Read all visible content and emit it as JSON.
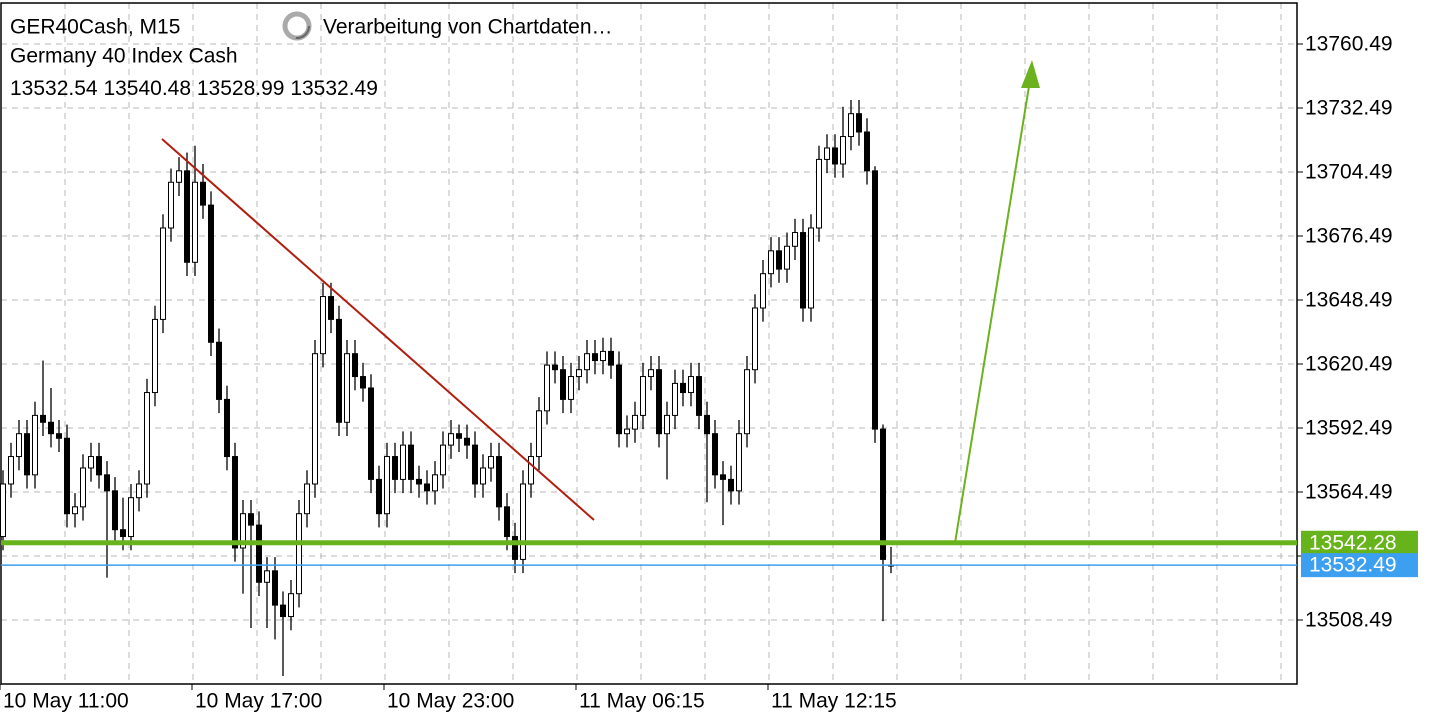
{
  "chart_data": {
    "type": "candlestick",
    "title": "GER40Cash, M15",
    "subtitle": "Germany 40 Index Cash",
    "status": "Verarbeitung von Chartdaten…",
    "categories": [
      "10 May 11:00",
      null,
      null,
      null,
      null,
      null,
      null,
      null,
      null,
      null,
      null,
      null,
      null,
      null,
      null,
      null,
      null,
      null,
      null,
      null,
      null,
      null,
      null,
      null,
      "10 May 17:00",
      null,
      null,
      null,
      null,
      null,
      null,
      null,
      null,
      null,
      null,
      null,
      null,
      null,
      null,
      null,
      null,
      null,
      null,
      null,
      null,
      null,
      null,
      null,
      "10 May 23:00",
      null,
      null,
      null,
      null,
      null,
      null,
      null,
      null,
      null,
      null,
      null,
      null,
      null,
      null,
      null,
      null,
      null,
      null,
      null,
      null,
      null,
      null,
      null,
      "11 May 06:15",
      null,
      null,
      null,
      null,
      null,
      null,
      null,
      null,
      null,
      null,
      null,
      null,
      null,
      null,
      null,
      null,
      null,
      null,
      null,
      null,
      null,
      null,
      null,
      "11 May 12:15",
      null,
      null,
      null,
      null,
      null,
      null,
      null,
      null,
      null,
      null,
      null,
      null,
      null,
      null,
      null
    ],
    "open": [
      13545,
      13568,
      13580,
      13590,
      13572,
      13598,
      13595,
      13590,
      13588,
      13555,
      13558,
      13575,
      13580,
      13572,
      13565,
      13548,
      13545,
      13562,
      13568,
      13608,
      13640,
      13680,
      13700,
      13705,
      13665,
      13700,
      13690,
      13630,
      13605,
      13580,
      13540,
      13555,
      13550,
      13525,
      13530,
      13515,
      13510,
      13520,
      13555,
      13568,
      13625,
      13650,
      13640,
      13595,
      13625,
      13615,
      13610,
      13570,
      13555,
      13580,
      13570,
      13585,
      13570,
      13568,
      13565,
      13572,
      13585,
      13590,
      13588,
      13585,
      13568,
      13575,
      13580,
      13558,
      13545,
      13535,
      13568,
      13580,
      13600,
      13620,
      13618,
      13605,
      13615,
      13618,
      13625,
      13622,
      13626,
      13620,
      13590,
      13592,
      13598,
      13615,
      13618,
      13590,
      13598,
      13612,
      13608,
      13615,
      13598,
      13590,
      13572,
      13570,
      13565,
      13590,
      13618,
      13645,
      13660,
      13670,
      13662,
      13672,
      13678,
      13645,
      13680,
      13710,
      13715,
      13708,
      13720,
      13730,
      13722,
      13705,
      13592,
      13532.54
    ],
    "high": [
      13574,
      13586,
      13596,
      13596,
      13604,
      13622,
      13610,
      13596,
      13594,
      13564,
      13581,
      13586,
      13586,
      13578,
      13571,
      13562,
      13568,
      13574,
      13614,
      13646,
      13686,
      13706,
      13711,
      13713,
      13716,
      13708,
      13696,
      13636,
      13611,
      13586,
      13561,
      13561,
      13556,
      13536,
      13536,
      13521,
      13526,
      13561,
      13574,
      13631,
      13656,
      13656,
      13646,
      13631,
      13631,
      13621,
      13616,
      13576,
      13586,
      13586,
      13591,
      13591,
      13576,
      13574,
      13578,
      13591,
      13596,
      13594,
      13594,
      13591,
      13581,
      13586,
      13586,
      13564,
      13551,
      13574,
      13586,
      13606,
      13626,
      13626,
      13624,
      13621,
      13624,
      13631,
      13631,
      13632,
      13632,
      13626,
      13598,
      13604,
      13621,
      13624,
      13624,
      13604,
      13618,
      13618,
      13621,
      13621,
      13604,
      13596,
      13578,
      13576,
      13596,
      13624,
      13651,
      13666,
      13676,
      13676,
      13678,
      13684,
      13684,
      13686,
      13716,
      13721,
      13721,
      13733,
      13736,
      13736,
      13728,
      13707,
      13594,
      13540.48
    ],
    "low": [
      13539,
      13562,
      13574,
      13566,
      13566,
      13589,
      13584,
      13582,
      13549,
      13549,
      13552,
      13569,
      13566,
      13527,
      13542,
      13539,
      13539,
      13556,
      13562,
      13602,
      13634,
      13674,
      13694,
      13659,
      13659,
      13684,
      13624,
      13599,
      13574,
      13534,
      13520,
      13505,
      13519,
      13505,
      13500,
      13484,
      13504,
      13514,
      13549,
      13562,
      13619,
      13634,
      13589,
      13589,
      13609,
      13604,
      13564,
      13549,
      13549,
      13564,
      13564,
      13564,
      13562,
      13559,
      13559,
      13566,
      13579,
      13582,
      13579,
      13562,
      13562,
      13569,
      13552,
      13539,
      13529,
      13529,
      13562,
      13574,
      13594,
      13612,
      13599,
      13599,
      13609,
      13612,
      13616,
      13616,
      13614,
      13584,
      13584,
      13586,
      13592,
      13609,
      13584,
      13570,
      13592,
      13602,
      13602,
      13592,
      13560,
      13566,
      13550,
      13559,
      13559,
      13584,
      13612,
      13639,
      13654,
      13656,
      13656,
      13666,
      13639,
      13639,
      13674,
      13704,
      13702,
      13702,
      13714,
      13716,
      13699,
      13586,
      13508,
      13528.99
    ],
    "close": [
      13568,
      13580,
      13590,
      13572,
      13598,
      13595,
      13590,
      13588,
      13555,
      13558,
      13575,
      13580,
      13572,
      13565,
      13548,
      13545,
      13562,
      13568,
      13608,
      13640,
      13680,
      13700,
      13705,
      13665,
      13700,
      13690,
      13630,
      13605,
      13580,
      13540,
      13555,
      13550,
      13525,
      13530,
      13515,
      13510,
      13520,
      13555,
      13568,
      13625,
      13650,
      13640,
      13595,
      13625,
      13615,
      13610,
      13570,
      13555,
      13580,
      13570,
      13585,
      13570,
      13568,
      13565,
      13572,
      13585,
      13590,
      13588,
      13585,
      13568,
      13575,
      13580,
      13558,
      13545,
      13535,
      13568,
      13580,
      13600,
      13620,
      13618,
      13605,
      13615,
      13618,
      13625,
      13622,
      13626,
      13620,
      13590,
      13592,
      13598,
      13615,
      13618,
      13590,
      13598,
      13612,
      13608,
      13615,
      13598,
      13590,
      13572,
      13570,
      13565,
      13590,
      13618,
      13645,
      13660,
      13670,
      13662,
      13672,
      13678,
      13645,
      13680,
      13710,
      13715,
      13708,
      13720,
      13730,
      13722,
      13705,
      13592,
      13535,
      13532.49
    ],
    "ylim": [
      13480.49,
      13778.43
    ],
    "yticks": [
      13508.49,
      13536.49,
      13564.49,
      13592.49,
      13620.49,
      13648.49,
      13676.49,
      13704.49,
      13732.49,
      13760.49
    ],
    "grid": true,
    "hlines": [
      {
        "value": 13542.28,
        "color": "#67b31b"
      },
      {
        "value": 13532.49,
        "color": "#3c9ff0"
      }
    ]
  }
}
